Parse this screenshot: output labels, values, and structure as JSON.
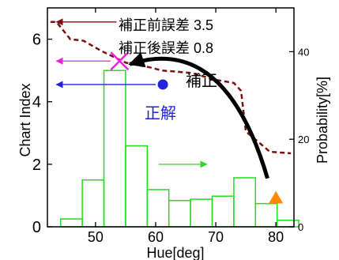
{
  "chart_data": {
    "type": "bar",
    "xlabel": "Hue[deg]",
    "ylabel": "Chart Index",
    "y2label": "Probability[%]",
    "xlim": [
      42,
      83
    ],
    "ylim": [
      0,
      7
    ],
    "y2lim": [
      0,
      50
    ],
    "x_ticks": [
      50,
      60,
      70,
      80
    ],
    "y_ticks": [
      0,
      2,
      4,
      6
    ],
    "y2_ticks": [
      0,
      20,
      40
    ],
    "grid": false,
    "histogram": {
      "bin_width": 3.6,
      "x_start": [
        44.2,
        47.8,
        51.4,
        55.0,
        58.6,
        62.2,
        65.8,
        69.4,
        73.0,
        76.6,
        80.2
      ],
      "probability": [
        1.8,
        10.7,
        35.7,
        18.5,
        8.5,
        6.0,
        6.3,
        7.0,
        11.2,
        5.3,
        1.5
      ],
      "color": "#22dd22"
    },
    "dashed_line": {
      "color": "#7a1010",
      "x": [
        42.5,
        43.5,
        45.8,
        48,
        51,
        55,
        59,
        61,
        66,
        70,
        73,
        74.2,
        75,
        79,
        82.5
      ],
      "y": [
        6.55,
        6.55,
        6.0,
        5.95,
        5.62,
        5.25,
        5.1,
        5.0,
        4.92,
        4.7,
        4.6,
        4.35,
        3.05,
        2.4,
        2.35
      ]
    },
    "markers": [
      {
        "kind": "cross",
        "x": 54.0,
        "y": 5.3,
        "color": "#ee22dd"
      },
      {
        "kind": "circle",
        "x": 61.2,
        "y": 4.55,
        "color": "#2222dd"
      },
      {
        "kind": "triangle",
        "x": 80.0,
        "y": 0.92,
        "color": "#ff8800"
      }
    ],
    "arrows": [
      {
        "x1": 53.5,
        "y1": 6.55,
        "x2": 43.5,
        "y2": 6.55,
        "color": "#7a1010",
        "width": 1.3
      },
      {
        "x1": 52.5,
        "y1": 5.3,
        "x2": 43.5,
        "y2": 5.3,
        "color": "#ee22dd",
        "width": 1.3
      },
      {
        "x1": 60.0,
        "y1": 4.55,
        "x2": 43.5,
        "y2": 4.55,
        "color": "#2222dd",
        "width": 1.3
      },
      {
        "x1": 60.5,
        "y1": 2.0,
        "x2": 68.5,
        "y2": 2.0,
        "color": "#22dd22",
        "width": 1.3
      }
    ],
    "correction_arrow": {
      "from": [
        78.6,
        1.55
      ],
      "control": [
        71.5,
        6.2
      ],
      "to": [
        55.7,
        5.2
      ],
      "color": "#000000"
    },
    "annotations": {
      "before_error": "補正前誤差 3.5",
      "after_error": "補正後誤差 0.8",
      "correction": "補正",
      "correct_answer": "正解"
    },
    "annotation_colors": {
      "correction": "#000000",
      "correct_answer": "#2222dd"
    }
  }
}
